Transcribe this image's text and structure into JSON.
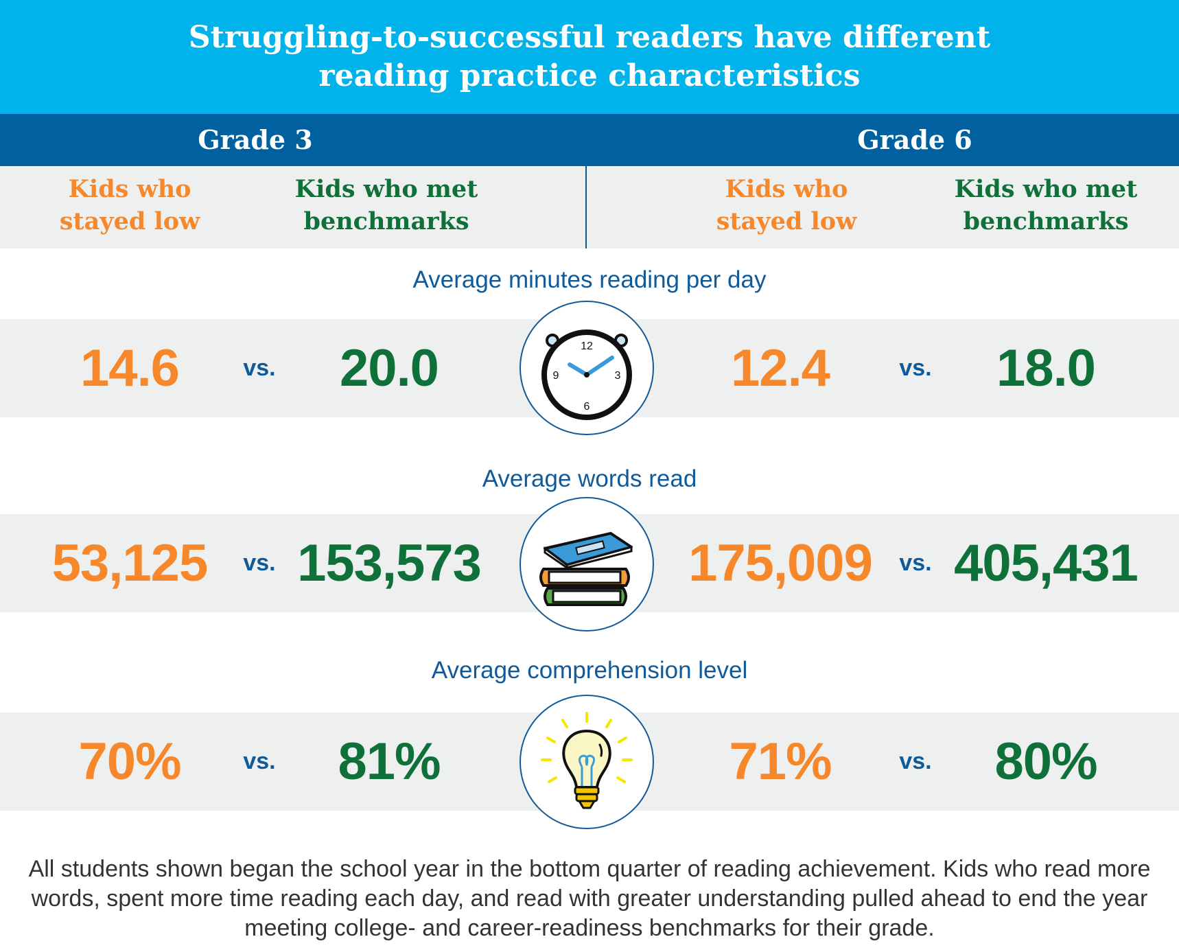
{
  "title": "Struggling-to-successful readers have different reading practice characteristics",
  "grades": [
    {
      "label": "Grade 3",
      "low_label": "Kids who stayed low",
      "met_label": "Kids who met benchmarks"
    },
    {
      "label": "Grade 6",
      "low_label": "Kids who stayed low",
      "met_label": "Kids who met benchmarks"
    }
  ],
  "vs_label": "vs.",
  "colors": {
    "title_bg": "#00b3ea",
    "grade_bg": "#0060a0",
    "band_bg": "#eeefef",
    "stayed_low": "#f6872a",
    "met_benchmarks": "#10703a",
    "metric_title": "#0f5a9a"
  },
  "metrics": [
    {
      "title": "Average minutes reading per day",
      "icon": "clock-icon",
      "clock_numbers": [
        "12",
        "3",
        "6",
        "9"
      ],
      "grade3": {
        "low": "14.6",
        "met": "20.0"
      },
      "grade6": {
        "low": "12.4",
        "met": "18.0"
      }
    },
    {
      "title": "Average words read",
      "icon": "books-stack-icon",
      "grade3": {
        "low": "53,125",
        "met": "153,573"
      },
      "grade6": {
        "low": "175,009",
        "met": "405,431"
      }
    },
    {
      "title": "Average comprehension level",
      "icon": "light-bulb-icon",
      "grade3": {
        "low": "70%",
        "met": "81%"
      },
      "grade6": {
        "low": "71%",
        "met": "80%"
      }
    }
  ],
  "chart_data": {
    "type": "table",
    "title": "Struggling-to-successful readers have different reading practice characteristics",
    "columns": [
      "Grade 3 · Kids who stayed low",
      "Grade 3 · Kids who met benchmarks",
      "Grade 6 · Kids who stayed low",
      "Grade 6 · Kids who met benchmarks"
    ],
    "rows": [
      {
        "metric": "Average minutes reading per day",
        "values": [
          14.6,
          20.0,
          12.4,
          18.0
        ]
      },
      {
        "metric": "Average words read",
        "values": [
          53125,
          153573,
          175009,
          405431
        ]
      },
      {
        "metric": "Average comprehension level",
        "values": [
          70,
          81,
          71,
          80
        ]
      }
    ]
  },
  "footnote": "All students shown began the school year in the bottom quarter of reading achievement. Kids who read more words, spent more time reading each day, and read with greater understanding pulled ahead to end the year meeting college- and career-readiness benchmarks for their grade."
}
